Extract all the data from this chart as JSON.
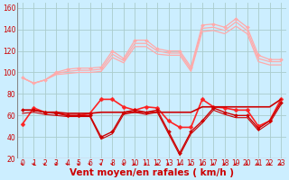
{
  "title": "",
  "xlabel": "Vent moyen/en rafales ( km/h )",
  "background_color": "#cceeff",
  "grid_color": "#aacccc",
  "xlim": [
    -0.5,
    23.5
  ],
  "ylim": [
    20,
    165
  ],
  "yticks": [
    20,
    40,
    60,
    80,
    100,
    120,
    140,
    160
  ],
  "xticks": [
    0,
    1,
    2,
    3,
    4,
    5,
    6,
    7,
    8,
    9,
    10,
    11,
    12,
    13,
    14,
    15,
    16,
    17,
    18,
    19,
    20,
    21,
    22,
    23
  ],
  "lines": [
    {
      "x": [
        0,
        1,
        2,
        3,
        4,
        5,
        6,
        7,
        8,
        9,
        10,
        11,
        12,
        13,
        14,
        15,
        16,
        17,
        18,
        19,
        20,
        21,
        22,
        23
      ],
      "y": [
        95,
        90,
        93,
        100,
        103,
        104,
        104,
        105,
        120,
        113,
        130,
        130,
        122,
        120,
        120,
        105,
        144,
        145,
        142,
        150,
        142,
        116,
        112,
        112
      ],
      "color": "#ffaaaa",
      "lw": 0.9,
      "marker": "D",
      "ms": 2.0
    },
    {
      "x": [
        0,
        1,
        2,
        3,
        4,
        5,
        6,
        7,
        8,
        9,
        10,
        11,
        12,
        13,
        14,
        15,
        16,
        17,
        18,
        19,
        20,
        21,
        22,
        23
      ],
      "y": [
        95,
        90,
        93,
        99,
        101,
        102,
        102,
        103,
        117,
        111,
        127,
        127,
        120,
        118,
        118,
        103,
        141,
        142,
        139,
        147,
        139,
        113,
        110,
        110
      ],
      "color": "#ffaaaa",
      "lw": 0.9,
      "marker": null,
      "ms": 0
    },
    {
      "x": [
        0,
        1,
        2,
        3,
        4,
        5,
        6,
        7,
        8,
        9,
        10,
        11,
        12,
        13,
        14,
        15,
        16,
        17,
        18,
        19,
        20,
        21,
        22,
        23
      ],
      "y": [
        95,
        90,
        93,
        98,
        99,
        100,
        100,
        101,
        114,
        109,
        124,
        124,
        117,
        116,
        116,
        101,
        138,
        139,
        136,
        143,
        136,
        110,
        107,
        107
      ],
      "color": "#ffaaaa",
      "lw": 0.9,
      "marker": null,
      "ms": 0
    },
    {
      "x": [
        0,
        1,
        2,
        3,
        4,
        5,
        6,
        7,
        8,
        9,
        10,
        11,
        12,
        13,
        14,
        15,
        16,
        17,
        18,
        19,
        20,
        21,
        22,
        23
      ],
      "y": [
        52,
        67,
        63,
        63,
        60,
        60,
        62,
        75,
        75,
        68,
        65,
        68,
        67,
        55,
        49,
        49,
        75,
        68,
        67,
        65,
        65,
        50,
        55,
        75
      ],
      "color": "#ff2222",
      "lw": 1.2,
      "marker": "D",
      "ms": 2.5
    },
    {
      "x": [
        0,
        1,
        2,
        3,
        4,
        5,
        6,
        7,
        8,
        9,
        10,
        11,
        12,
        13,
        14,
        15,
        16,
        17,
        18,
        19,
        20,
        21,
        22,
        23
      ],
      "y": [
        65,
        65,
        63,
        63,
        62,
        62,
        62,
        63,
        63,
        63,
        63,
        63,
        63,
        63,
        63,
        63,
        68,
        68,
        68,
        68,
        68,
        68,
        68,
        75
      ],
      "color": "#cc0000",
      "lw": 1.2,
      "marker": null,
      "ms": 0
    },
    {
      "x": [
        0,
        1,
        2,
        3,
        4,
        5,
        6,
        7,
        8,
        9,
        10,
        11,
        12,
        13,
        14,
        15,
        16,
        17,
        18,
        19,
        20,
        21,
        22,
        23
      ],
      "y": [
        65,
        65,
        63,
        62,
        60,
        60,
        60,
        40,
        45,
        63,
        65,
        63,
        65,
        45,
        25,
        45,
        55,
        67,
        63,
        60,
        60,
        48,
        55,
        72
      ],
      "color": "#cc0000",
      "lw": 1.0,
      "marker": "D",
      "ms": 2.0
    },
    {
      "x": [
        0,
        1,
        2,
        3,
        4,
        5,
        6,
        7,
        8,
        9,
        10,
        11,
        12,
        13,
        14,
        15,
        16,
        17,
        18,
        19,
        20,
        21,
        22,
        23
      ],
      "y": [
        62,
        63,
        61,
        60,
        59,
        59,
        59,
        38,
        43,
        61,
        63,
        61,
        63,
        43,
        23,
        43,
        53,
        65,
        61,
        58,
        58,
        46,
        53,
        70
      ],
      "color": "#cc0000",
      "lw": 0.8,
      "marker": null,
      "ms": 0
    }
  ],
  "xlabel_color": "#cc0000",
  "xlabel_fontsize": 7.5,
  "tick_color": "#cc0000",
  "tick_fontsize": 5.5
}
